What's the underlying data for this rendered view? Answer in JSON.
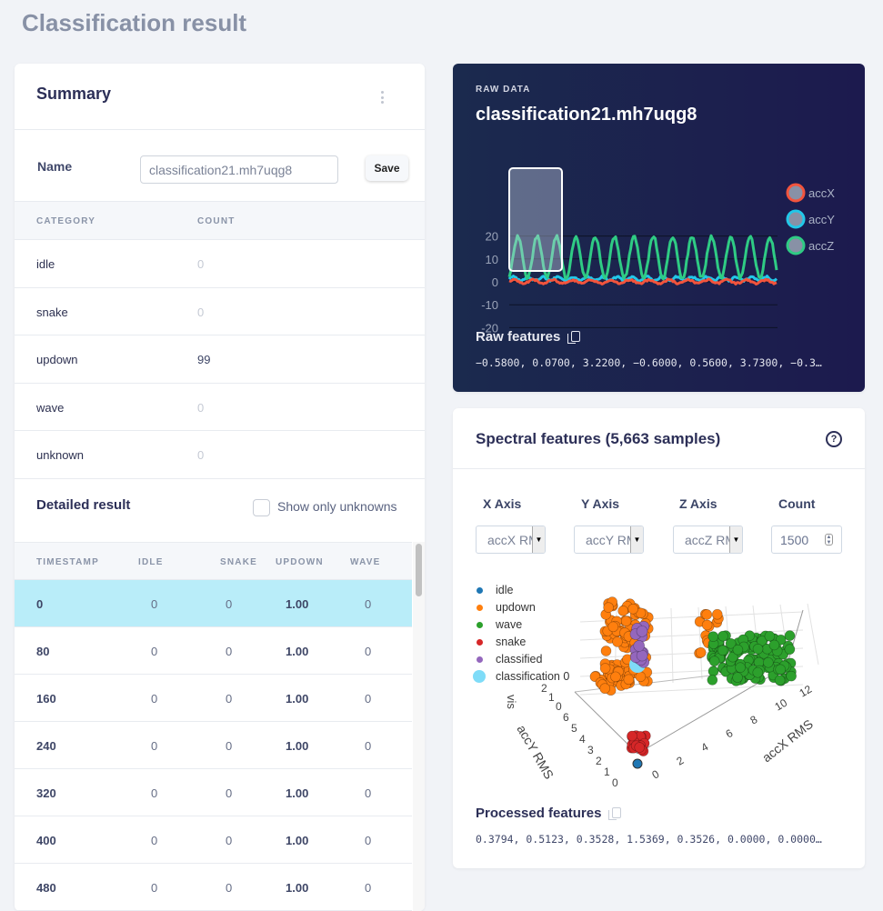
{
  "page_title": "Classification result",
  "summary": {
    "title": "Summary",
    "name_label": "Name",
    "name_value": "classification21.mh7uqg8",
    "save_label": "Save",
    "columns": [
      "CATEGORY",
      "COUNT"
    ],
    "rows": [
      {
        "category": "idle",
        "count": "0"
      },
      {
        "category": "snake",
        "count": "0"
      },
      {
        "category": "updown",
        "count": "99"
      },
      {
        "category": "wave",
        "count": "0"
      },
      {
        "category": "unknown",
        "count": "0"
      }
    ]
  },
  "detailed": {
    "title": "Detailed result",
    "show_unknowns_label": "Show only unknowns",
    "show_unknowns_checked": false,
    "columns": [
      "TIMESTAMP",
      "IDLE",
      "SNAKE",
      "UPDOWN",
      "WAVE"
    ],
    "rows": [
      [
        "0",
        "0",
        "0",
        "1.00",
        "0"
      ],
      [
        "80",
        "0",
        "0",
        "1.00",
        "0"
      ],
      [
        "160",
        "0",
        "0",
        "1.00",
        "0"
      ],
      [
        "240",
        "0",
        "0",
        "1.00",
        "0"
      ],
      [
        "320",
        "0",
        "0",
        "1.00",
        "0"
      ],
      [
        "400",
        "0",
        "0",
        "1.00",
        "0"
      ],
      [
        "480",
        "0",
        "0",
        "1.00",
        "0"
      ]
    ],
    "selected_row": 0
  },
  "raw": {
    "subtitle": "RAW DATA",
    "title": "classification21.mh7uqg8",
    "features_label": "Raw features",
    "features_values": "−0.5800, 0.0700, 3.2200, −0.6000, 0.5600, 3.7300, −0.3…",
    "y_ticks": [
      "20",
      "10",
      "0",
      "-10",
      "-20"
    ],
    "legend": [
      {
        "name": "accX",
        "color": "#f2543d"
      },
      {
        "name": "accY",
        "color": "#22c7e8"
      },
      {
        "name": "accZ",
        "color": "#2fcb84"
      }
    ]
  },
  "spectral": {
    "title": "Spectral features (5,663 samples)",
    "help_icon": "question-circle-icon",
    "x_label": "X Axis",
    "y_label": "Y Axis",
    "z_label": "Z Axis",
    "count_label": "Count",
    "x_value": "accX RMS",
    "y_value": "accY RMS",
    "z_value": "accZ RMS",
    "count_value": "1500",
    "legend": [
      {
        "name": "idle",
        "color": "#1f77b4"
      },
      {
        "name": "updown",
        "color": "#ff7f0e"
      },
      {
        "name": "wave",
        "color": "#2ca02c"
      },
      {
        "name": "snake",
        "color": "#d62728"
      },
      {
        "name": "classified",
        "color": "#9467bd"
      },
      {
        "name": "classification 0",
        "color": "#7fdcf8"
      }
    ],
    "x_axis_title": "accX RMS",
    "y_axis_title": "accY RMS",
    "z_axis_title": "vis",
    "x_ticks": [
      "0",
      "2",
      "4",
      "6",
      "8",
      "10",
      "12"
    ],
    "y_ticks": [
      "0",
      "1",
      "2",
      "3",
      "4",
      "5",
      "6"
    ],
    "z_ticks": [
      "0",
      "1",
      "2"
    ],
    "features_label": "Processed features",
    "features_values": "0.3794, 0.5123, 0.3528, 1.5369, 0.3526, 0.0000, 0.0000…"
  }
}
